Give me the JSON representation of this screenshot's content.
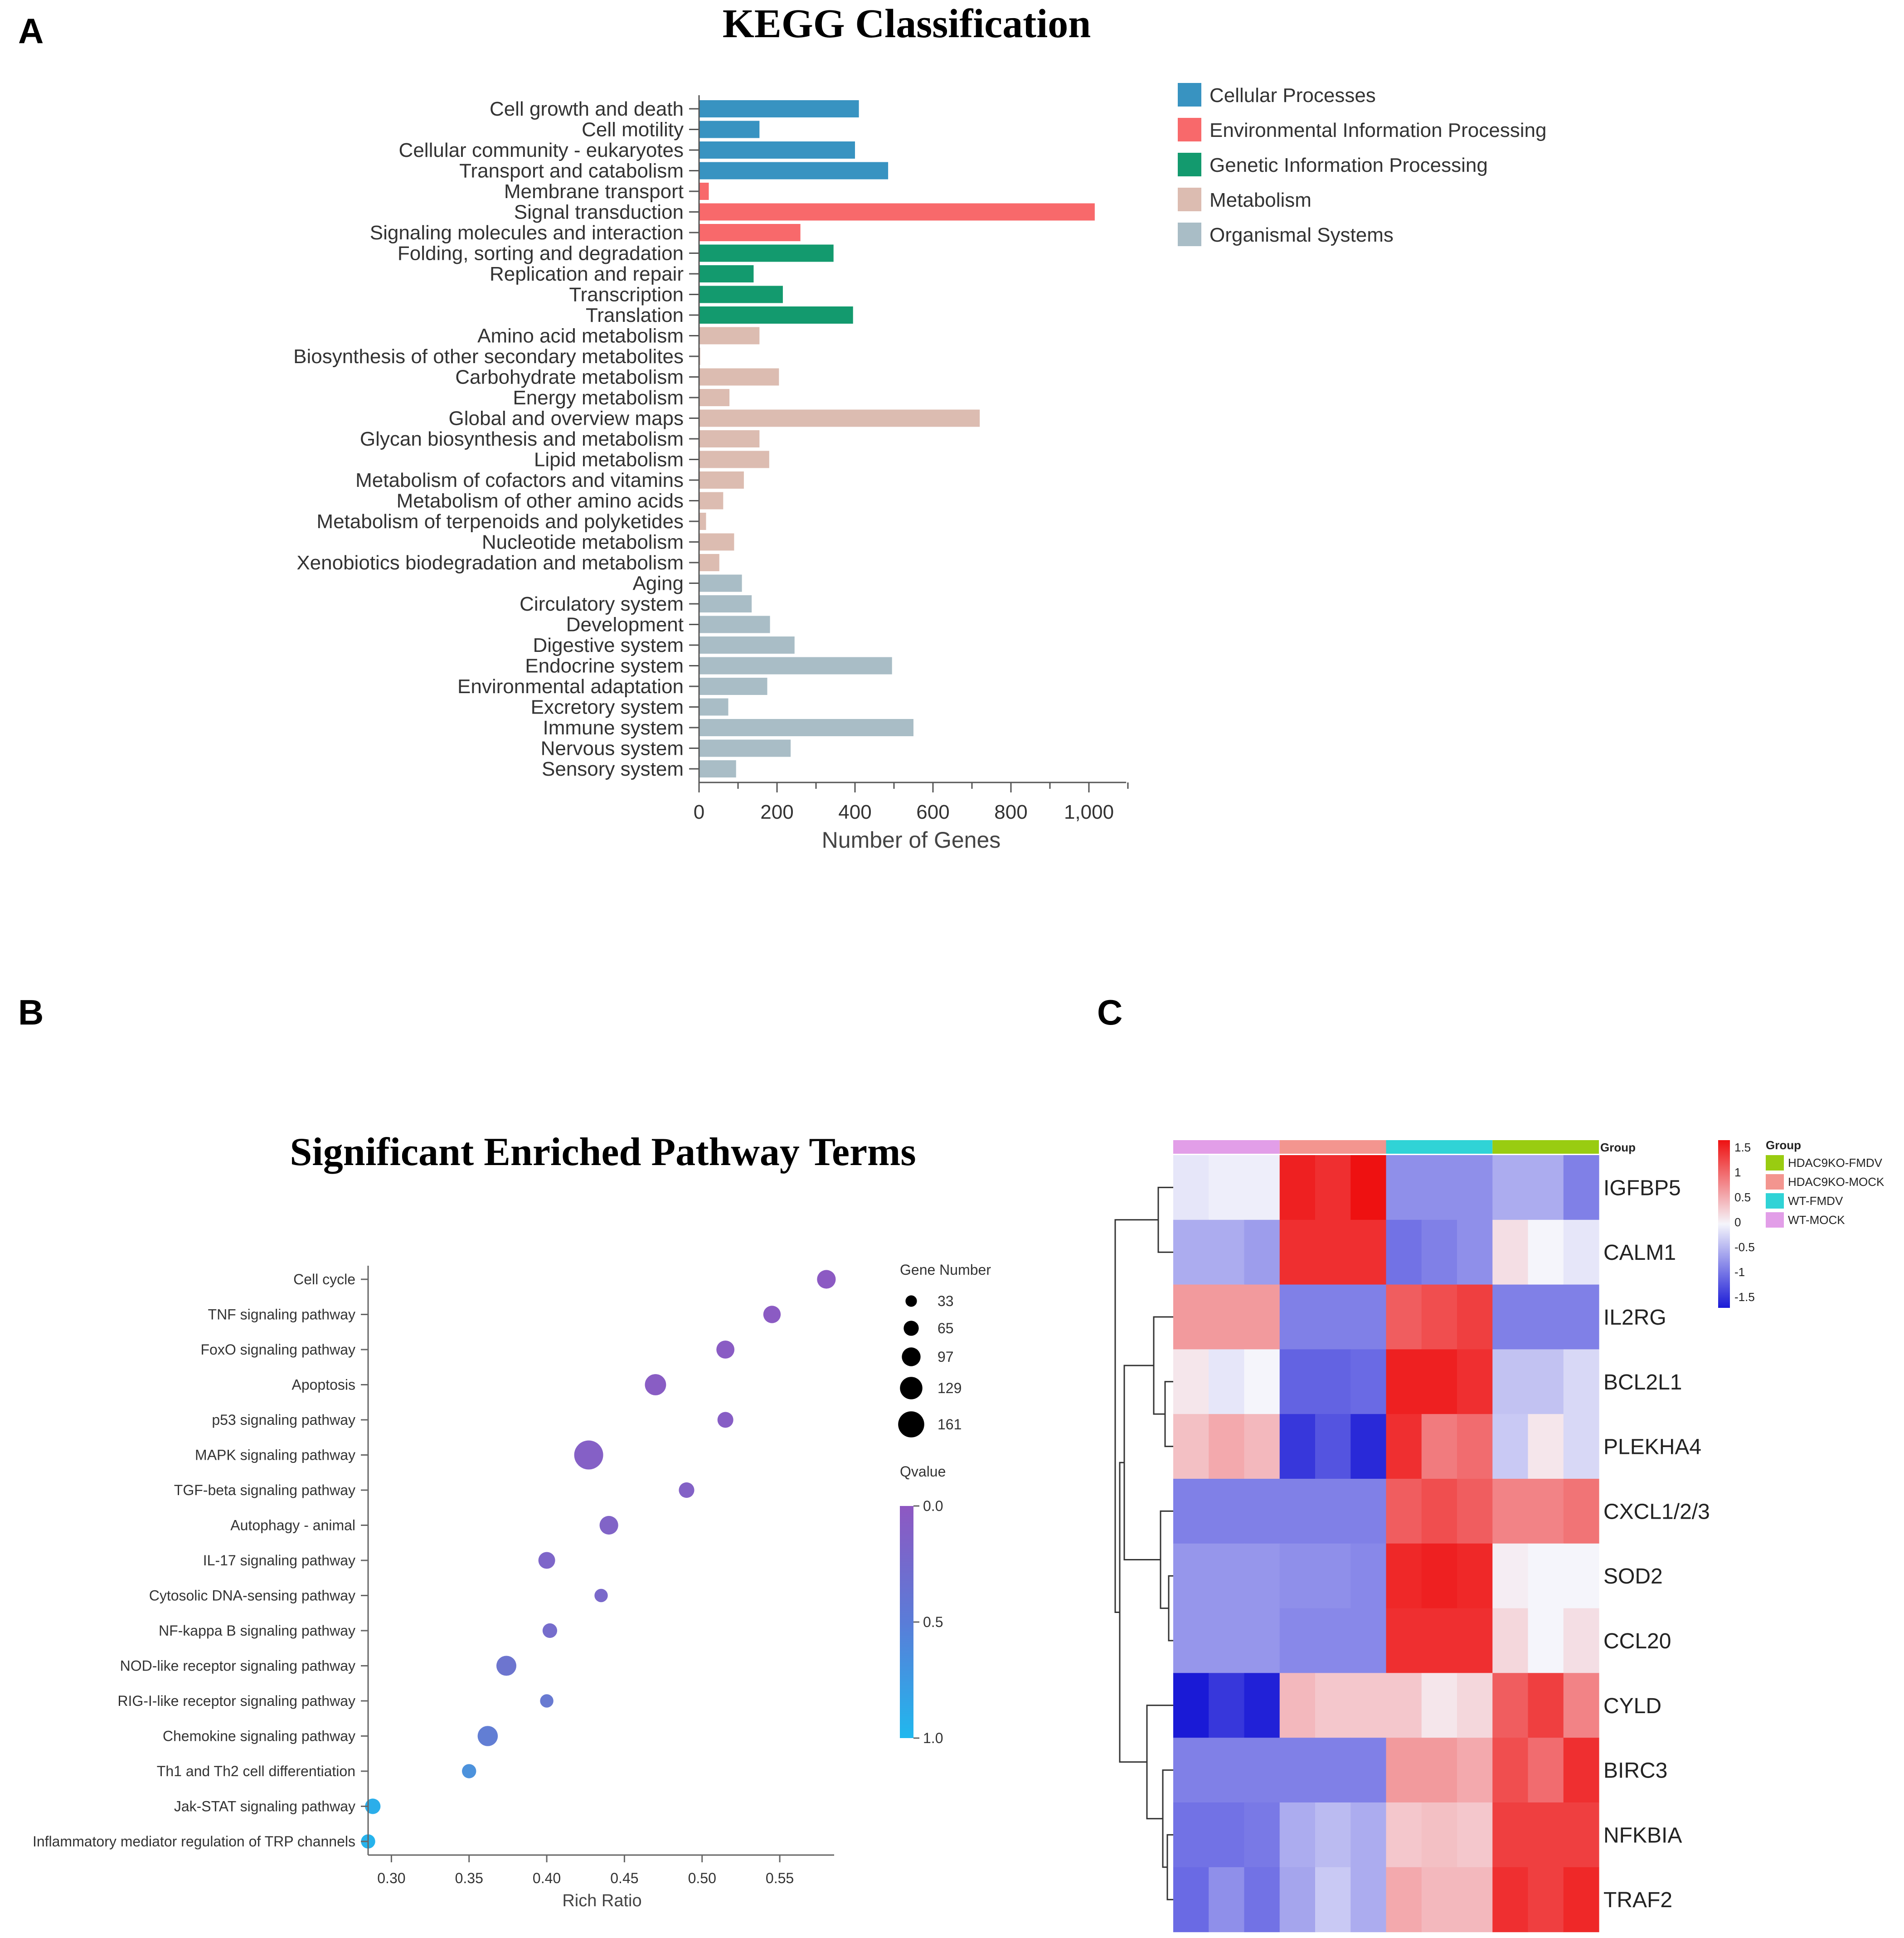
{
  "panels": {
    "a": "A",
    "b": "B",
    "c": "C"
  },
  "kegg": {
    "title": "KEGG Classification",
    "xlabel": "Number of Genes",
    "xticks": [
      "0",
      "200",
      "400",
      "600",
      "800",
      "1,000"
    ],
    "legend": [
      "Cellular Processes",
      "Environmental Information Processing",
      "Genetic Information Processing",
      "Metabolism",
      "Organismal Systems"
    ]
  },
  "pathway": {
    "title": "Significant Enriched Pathway Terms",
    "xlabel": "Rich Ratio",
    "xticks": [
      "0.30",
      "0.35",
      "0.40",
      "0.45",
      "0.50",
      "0.55"
    ],
    "size_legend_title": "Gene Number",
    "size_legend": [
      "33",
      "65",
      "97",
      "129",
      "161"
    ],
    "color_legend_title": "Qvalue",
    "color_ticks": [
      "0.0",
      "0.5",
      "1.0"
    ]
  },
  "heat": {
    "group_label": "Group",
    "legend_title": "Group",
    "legend_groups": [
      "HDAC9KO-FMDV",
      "HDAC9KO-MOCK",
      "WT-FMDV",
      "WT-MOCK"
    ],
    "scale_ticks": [
      "1.5",
      "1",
      "0.5",
      "0",
      "-0.5",
      "-1",
      "-1.5"
    ]
  },
  "colors": {
    "cellular": "#3893c1",
    "environmental": "#f8696b",
    "genetic": "#139a6e",
    "metabolism": "#dcbcb1",
    "organismal": "#a9bdc6",
    "wt_mock": "#e29ee8",
    "hdac_mock": "#f3958f",
    "wt_fmdv": "#30d3d6",
    "hdac_fmdv": "#99cc11",
    "heat_low": "#1a1ad6",
    "heat_mid": "#f5f5fb",
    "heat_high": "#ee1111",
    "q_low": "#20b8ee",
    "q_high": "#8e58c2"
  },
  "chart_data": [
    {
      "type": "bar",
      "orientation": "horizontal",
      "title": "KEGG Classification",
      "xlabel": "Number of Genes",
      "xlim": [
        0,
        1100
      ],
      "series_groups": [
        "Cellular Processes",
        "Environmental Information Processing",
        "Genetic Information Processing",
        "Metabolism",
        "Organismal Systems"
      ],
      "bars": [
        {
          "label": "Cell growth and death",
          "value": 410,
          "group": 0
        },
        {
          "label": "Cell motility",
          "value": 155,
          "group": 0
        },
        {
          "label": "Cellular community - eukaryotes",
          "value": 400,
          "group": 0
        },
        {
          "label": "Transport and catabolism",
          "value": 485,
          "group": 0
        },
        {
          "label": "Membrane transport",
          "value": 25,
          "group": 1
        },
        {
          "label": "Signal transduction",
          "value": 1015,
          "group": 1
        },
        {
          "label": "Signaling molecules and interaction",
          "value": 260,
          "group": 1
        },
        {
          "label": "Folding, sorting and degradation",
          "value": 345,
          "group": 2
        },
        {
          "label": "Replication and repair",
          "value": 140,
          "group": 2
        },
        {
          "label": "Transcription",
          "value": 215,
          "group": 2
        },
        {
          "label": "Translation",
          "value": 395,
          "group": 2
        },
        {
          "label": "Amino acid metabolism",
          "value": 155,
          "group": 3
        },
        {
          "label": "Biosynthesis of other secondary metabolites",
          "value": 3,
          "group": 3
        },
        {
          "label": "Carbohydrate metabolism",
          "value": 205,
          "group": 3
        },
        {
          "label": "Energy metabolism",
          "value": 78,
          "group": 3
        },
        {
          "label": "Global and overview maps",
          "value": 720,
          "group": 3
        },
        {
          "label": "Glycan biosynthesis and metabolism",
          "value": 155,
          "group": 3
        },
        {
          "label": "Lipid metabolism",
          "value": 180,
          "group": 3
        },
        {
          "label": "Metabolism of cofactors and vitamins",
          "value": 115,
          "group": 3
        },
        {
          "label": "Metabolism of other amino acids",
          "value": 62,
          "group": 3
        },
        {
          "label": "Metabolism of terpenoids and polyketides",
          "value": 18,
          "group": 3
        },
        {
          "label": "Nucleotide metabolism",
          "value": 90,
          "group": 3
        },
        {
          "label": "Xenobiotics biodegradation and metabolism",
          "value": 52,
          "group": 3
        },
        {
          "label": "Aging",
          "value": 110,
          "group": 4
        },
        {
          "label": "Circulatory system",
          "value": 135,
          "group": 4
        },
        {
          "label": "Development",
          "value": 182,
          "group": 4
        },
        {
          "label": "Digestive system",
          "value": 245,
          "group": 4
        },
        {
          "label": "Endocrine system",
          "value": 495,
          "group": 4
        },
        {
          "label": "Environmental adaptation",
          "value": 175,
          "group": 4
        },
        {
          "label": "Excretory system",
          "value": 75,
          "group": 4
        },
        {
          "label": "Immune system",
          "value": 550,
          "group": 4
        },
        {
          "label": "Nervous system",
          "value": 235,
          "group": 4
        },
        {
          "label": "Sensory system",
          "value": 95,
          "group": 4
        }
      ]
    },
    {
      "type": "scatter",
      "title": "Significant Enriched Pathway Terms",
      "xlabel": "Rich Ratio",
      "xlim": [
        0.285,
        0.585
      ],
      "points": [
        {
          "label": "Cell cycle",
          "rich_ratio": 0.58,
          "gene_number": 80,
          "qvalue": 0.02
        },
        {
          "label": "TNF signaling pathway",
          "rich_ratio": 0.545,
          "gene_number": 70,
          "qvalue": 0.03
        },
        {
          "label": "FoxO signaling pathway",
          "rich_ratio": 0.515,
          "gene_number": 75,
          "qvalue": 0.04
        },
        {
          "label": "Apoptosis",
          "rich_ratio": 0.47,
          "gene_number": 100,
          "qvalue": 0.05
        },
        {
          "label": "p53 signaling pathway",
          "rich_ratio": 0.515,
          "gene_number": 58,
          "qvalue": 0.06
        },
        {
          "label": "MAPK signaling pathway",
          "rich_ratio": 0.427,
          "gene_number": 161,
          "qvalue": 0.08
        },
        {
          "label": "TGF-beta signaling pathway",
          "rich_ratio": 0.49,
          "gene_number": 55,
          "qvalue": 0.1
        },
        {
          "label": "Autophagy - animal",
          "rich_ratio": 0.44,
          "gene_number": 80,
          "qvalue": 0.12
        },
        {
          "label": "IL-17 signaling pathway",
          "rich_ratio": 0.4,
          "gene_number": 65,
          "qvalue": 0.15
        },
        {
          "label": "Cytosolic DNA-sensing pathway",
          "rich_ratio": 0.435,
          "gene_number": 38,
          "qvalue": 0.18
        },
        {
          "label": "NF-kappa B signaling pathway",
          "rich_ratio": 0.402,
          "gene_number": 48,
          "qvalue": 0.22
        },
        {
          "label": "NOD-like receptor signaling pathway",
          "rich_ratio": 0.374,
          "gene_number": 90,
          "qvalue": 0.3
        },
        {
          "label": "RIG-I-like receptor signaling pathway",
          "rich_ratio": 0.4,
          "gene_number": 38,
          "qvalue": 0.35
        },
        {
          "label": "Chemokine signaling pathway",
          "rich_ratio": 0.362,
          "gene_number": 92,
          "qvalue": 0.4
        },
        {
          "label": "Th1 and Th2 cell differentiation",
          "rich_ratio": 0.35,
          "gene_number": 45,
          "qvalue": 0.6
        },
        {
          "label": "Jak-STAT signaling pathway",
          "rich_ratio": 0.288,
          "gene_number": 55,
          "qvalue": 0.9
        },
        {
          "label": "Inflammatory mediator regulation of TRP channels",
          "rich_ratio": 0.285,
          "gene_number": 45,
          "qvalue": 0.95
        }
      ]
    },
    {
      "type": "heatmap",
      "genes": [
        "IGFBP5",
        "CALM1",
        "IL2RG",
        "BCL2L1",
        "PLEKHA4",
        "CXCL1/2/3",
        "SOD2",
        "CCL20",
        "CYLD",
        "BIRC3",
        "NFKBIA",
        "TRAF2"
      ],
      "column_groups": [
        "WT-MOCK",
        "WT-MOCK",
        "WT-MOCK",
        "HDAC9KO-MOCK",
        "HDAC9KO-MOCK",
        "HDAC9KO-MOCK",
        "WT-FMDV",
        "WT-FMDV",
        "WT-FMDV",
        "HDAC9KO-FMDV",
        "HDAC9KO-FMDV",
        "HDAC9KO-FMDV"
      ],
      "scale": [
        -1.5,
        1.5
      ],
      "values": [
        [
          -0.1,
          -0.05,
          -0.05,
          1.4,
          1.3,
          1.5,
          -0.7,
          -0.7,
          -0.7,
          -0.5,
          -0.5,
          -0.8
        ],
        [
          -0.5,
          -0.5,
          -0.6,
          1.3,
          1.3,
          1.3,
          -0.9,
          -0.8,
          -0.7,
          0.15,
          0.0,
          -0.1
        ],
        [
          0.6,
          0.6,
          0.6,
          -0.8,
          -0.8,
          -0.8,
          1.0,
          1.1,
          1.2,
          -0.8,
          -0.8,
          -0.8
        ],
        [
          0.1,
          -0.1,
          0.0,
          -1.0,
          -1.0,
          -0.95,
          1.4,
          1.4,
          1.3,
          -0.35,
          -0.35,
          -0.2
        ],
        [
          0.35,
          0.5,
          0.4,
          -1.3,
          -1.1,
          -1.4,
          1.3,
          0.8,
          0.9,
          -0.3,
          0.1,
          -0.2
        ],
        [
          -0.8,
          -0.8,
          -0.8,
          -0.8,
          -0.8,
          -0.8,
          1.0,
          1.1,
          1.0,
          0.75,
          0.75,
          0.85
        ],
        [
          -0.65,
          -0.65,
          -0.65,
          -0.7,
          -0.7,
          -0.75,
          1.35,
          1.4,
          1.35,
          0.05,
          0.0,
          0.0
        ],
        [
          -0.65,
          -0.65,
          -0.65,
          -0.75,
          -0.75,
          -0.75,
          1.3,
          1.3,
          1.3,
          0.2,
          0.0,
          0.15
        ],
        [
          -1.5,
          -1.3,
          -1.45,
          0.4,
          0.3,
          0.3,
          0.3,
          0.1,
          0.2,
          1.0,
          1.2,
          0.75
        ],
        [
          -0.8,
          -0.8,
          -0.8,
          -0.8,
          -0.8,
          -0.8,
          0.6,
          0.6,
          0.5,
          1.1,
          0.9,
          1.3
        ],
        [
          -0.9,
          -0.9,
          -0.85,
          -0.5,
          -0.4,
          -0.5,
          0.3,
          0.35,
          0.3,
          1.2,
          1.2,
          1.2
        ],
        [
          -0.95,
          -0.7,
          -0.9,
          -0.55,
          -0.3,
          -0.5,
          0.5,
          0.4,
          0.4,
          1.3,
          1.2,
          1.35
        ]
      ]
    }
  ]
}
